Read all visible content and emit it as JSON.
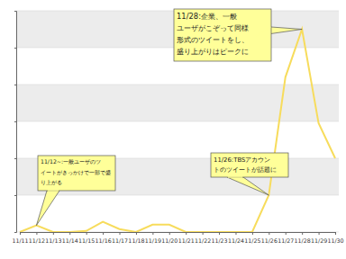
{
  "chart_data": {
    "type": "line",
    "categories": [
      "11/11",
      "11/12",
      "11/13",
      "11/14",
      "11/15",
      "11/16",
      "11/17",
      "11/18",
      "11/19",
      "11/20",
      "11/21",
      "11/22",
      "11/23",
      "11/24",
      "11/25",
      "11/26",
      "11/27",
      "11/28",
      "11/29",
      "11/30"
    ],
    "values": [
      0,
      0.18,
      0,
      0,
      0.03,
      0.28,
      0.08,
      0,
      0.2,
      0.2,
      0,
      0,
      0,
      0,
      0,
      1.0,
      4.2,
      5.5,
      2.95,
      2.0
    ],
    "color": "#f7dc5c",
    "ylim": [
      0,
      6
    ],
    "yticks": [
      0,
      1,
      2,
      3,
      4,
      5,
      6
    ],
    "grid": true,
    "tick_labels": "x",
    "annotations": [
      {
        "x": "11/28",
        "lines": [
          "11/28:企業、一般",
          "ユーザがこぞって同様",
          "形式のツイートをし、",
          "盛り上がりはピークに"
        ]
      },
      {
        "x": "11/26",
        "lines": [
          "11/26:TBSアカウン",
          "トのツイートが話題に"
        ]
      },
      {
        "x": "11/12",
        "lines": [
          "11/12~:一般ユーザのツ",
          "イートがきっかけで一部で盛",
          "り上がる"
        ]
      }
    ]
  }
}
